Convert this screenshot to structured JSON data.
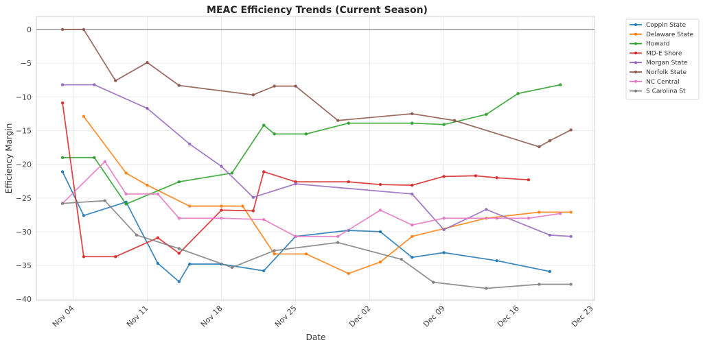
{
  "chart_data": {
    "type": "line",
    "title": "MEAC Efficiency Trends (Current Season)",
    "xlabel": "Date",
    "ylabel": "Efficiency Margin",
    "x_range": [
      "2024-11-02",
      "2024-12-23"
    ],
    "ylim": [
      -40.5,
      2
    ],
    "y_ticks": [
      0,
      -5,
      -10,
      -15,
      -20,
      -25,
      -30,
      -35,
      -40
    ],
    "y_tick_labels": [
      "0",
      "−5",
      "−10",
      "−15",
      "−20",
      "−25",
      "−30",
      "−35",
      "−40"
    ],
    "x_ticks": [
      "2024-11-04",
      "2024-11-11",
      "2024-11-18",
      "2024-11-25",
      "2024-12-02",
      "2024-12-09",
      "2024-12-16",
      "2024-12-23"
    ],
    "x_tick_labels": [
      "Nov 04",
      "Nov 11",
      "Nov 18",
      "Nov 25",
      "Dec 02",
      "Dec 09",
      "Dec 16",
      "Dec 23"
    ],
    "reference_line": 0,
    "grid": true,
    "legend_position": "outside-top-right",
    "series": [
      {
        "name": "Coppin State",
        "color": "#1f77b4",
        "x": [
          "2024-11-03",
          "2024-11-05",
          "2024-11-09",
          "2024-11-12",
          "2024-11-14",
          "2024-11-15",
          "2024-11-18",
          "2024-11-22",
          "2024-11-25",
          "2024-11-30",
          "2024-12-03",
          "2024-12-06",
          "2024-12-09",
          "2024-12-14",
          "2024-12-19"
        ],
        "values": [
          -21.1,
          -27.6,
          -25.6,
          -34.7,
          -37.4,
          -34.8,
          -34.8,
          -35.8,
          -30.7,
          -29.8,
          -30.0,
          -33.8,
          -33.1,
          -34.3,
          -35.9
        ]
      },
      {
        "name": "Delaware State",
        "color": "#ff7f0e",
        "x": [
          "2024-11-05",
          "2024-11-09",
          "2024-11-11",
          "2024-11-15",
          "2024-11-18",
          "2024-11-20",
          "2024-11-23",
          "2024-11-26",
          "2024-11-30",
          "2024-12-03",
          "2024-12-06",
          "2024-12-13",
          "2024-12-18",
          "2024-12-21"
        ],
        "values": [
          -12.9,
          -21.3,
          -23.1,
          -26.2,
          -26.2,
          -26.2,
          -33.3,
          -33.3,
          -36.2,
          -34.5,
          -30.7,
          -28.0,
          -27.1,
          -27.1
        ]
      },
      {
        "name": "Howard",
        "color": "#2ca02c",
        "x": [
          "2024-11-03",
          "2024-11-06",
          "2024-11-09",
          "2024-11-14",
          "2024-11-19",
          "2024-11-22",
          "2024-11-23",
          "2024-11-26",
          "2024-11-30",
          "2024-12-06",
          "2024-12-09",
          "2024-12-13",
          "2024-12-16",
          "2024-12-20"
        ],
        "values": [
          -19.0,
          -19.0,
          -25.9,
          -22.6,
          -21.3,
          -14.2,
          -15.5,
          -15.5,
          -13.9,
          -13.9,
          -14.1,
          -12.6,
          -9.5,
          -8.2
        ]
      },
      {
        "name": "MD-E Shore",
        "color": "#d62728",
        "x": [
          "2024-11-03",
          "2024-11-05",
          "2024-11-08",
          "2024-11-12",
          "2024-11-14",
          "2024-11-18",
          "2024-11-21",
          "2024-11-22",
          "2024-11-25",
          "2024-11-30",
          "2024-12-03",
          "2024-12-06",
          "2024-12-09",
          "2024-12-12",
          "2024-12-14",
          "2024-12-17"
        ],
        "values": [
          -10.9,
          -33.7,
          -33.7,
          -30.9,
          -33.2,
          -26.8,
          -26.9,
          -21.1,
          -22.6,
          -22.6,
          -23.0,
          -23.1,
          -21.8,
          -21.7,
          -22.0,
          -22.3
        ]
      },
      {
        "name": "Morgan State",
        "color": "#9467bd",
        "x": [
          "2024-11-03",
          "2024-11-06",
          "2024-11-11",
          "2024-11-15",
          "2024-11-18",
          "2024-11-21",
          "2024-11-25",
          "2024-12-06",
          "2024-12-09",
          "2024-12-13",
          "2024-12-19",
          "2024-12-21"
        ],
        "values": [
          -8.2,
          -8.2,
          -11.7,
          -17.0,
          -20.3,
          -24.9,
          -22.9,
          -24.4,
          -29.7,
          -26.7,
          -30.5,
          -30.7
        ]
      },
      {
        "name": "Norfolk State",
        "color": "#8c564b",
        "x": [
          "2024-11-03",
          "2024-11-05",
          "2024-11-08",
          "2024-11-11",
          "2024-11-14",
          "2024-11-21",
          "2024-11-23",
          "2024-11-25",
          "2024-11-29",
          "2024-12-06",
          "2024-12-10",
          "2024-12-18",
          "2024-12-19",
          "2024-12-21"
        ],
        "values": [
          0,
          0,
          -7.6,
          -4.9,
          -8.3,
          -9.7,
          -8.4,
          -8.4,
          -13.5,
          -12.5,
          -13.5,
          -17.4,
          -16.5,
          -14.9
        ]
      },
      {
        "name": "NC Central",
        "color": "#e377c2",
        "x": [
          "2024-11-03",
          "2024-11-07",
          "2024-11-09",
          "2024-11-12",
          "2024-11-14",
          "2024-11-18",
          "2024-11-22",
          "2024-11-25",
          "2024-11-29",
          "2024-12-03",
          "2024-12-06",
          "2024-12-09",
          "2024-12-14",
          "2024-12-17",
          "2024-12-20"
        ],
        "values": [
          -25.8,
          -19.6,
          -24.4,
          -24.4,
          -28.0,
          -28.0,
          -28.2,
          -30.7,
          -30.7,
          -26.8,
          -29.0,
          -28.0,
          -28.0,
          -28.0,
          -27.3
        ]
      },
      {
        "name": "S Carolina St",
        "color": "#7f7f7f",
        "x": [
          "2024-11-03",
          "2024-11-07",
          "2024-11-10",
          "2024-11-14",
          "2024-11-19",
          "2024-11-23",
          "2024-11-29",
          "2024-12-05",
          "2024-12-08",
          "2024-12-13",
          "2024-12-18",
          "2024-12-21"
        ],
        "values": [
          -25.8,
          -25.4,
          -30.5,
          -32.5,
          -35.3,
          -32.8,
          -31.6,
          -34.1,
          -37.5,
          -38.4,
          -37.8,
          -37.8
        ]
      }
    ]
  }
}
